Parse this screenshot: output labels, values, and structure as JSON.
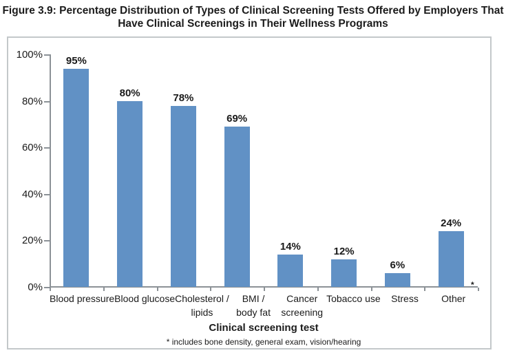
{
  "figure": {
    "title_lines": [
      "Figure 3.9: Percentage Distribution of Types of Clinical Screening Tests Offered by Employers That",
      "Have Clinical Screenings in Their Wellness Programs"
    ]
  },
  "chart_data": {
    "type": "bar",
    "title": "Figure 3.9: Percentage Distribution of Types of Clinical Screening Tests Offered by Employers That Have Clinical Screenings in Their Wellness Programs",
    "categories": [
      "Blood pressure",
      "Blood glucose",
      "Cholesterol /\nlipids",
      "BMI /\nbody fat",
      "Cancer\nscreening",
      "Tobacco use",
      "Stress",
      "Other"
    ],
    "values": [
      95,
      80,
      78,
      69,
      14,
      12,
      6,
      24
    ],
    "value_labels": [
      "95%",
      "80%",
      "78%",
      "69%",
      "14%",
      "12%",
      "6%",
      "24%"
    ],
    "xlabel": "Clinical screening test",
    "ylabel": "",
    "ylim": [
      0,
      100
    ],
    "y_ticks": [
      "0%",
      "20%",
      "40%",
      "60%",
      "80%",
      "100%"
    ],
    "grid": false,
    "legend": false,
    "bar_color": "#6191C5",
    "axis_color": "#8b9196",
    "axis_annotation": "*",
    "footnote": "* includes bone density, general exam, vision/hearing"
  }
}
